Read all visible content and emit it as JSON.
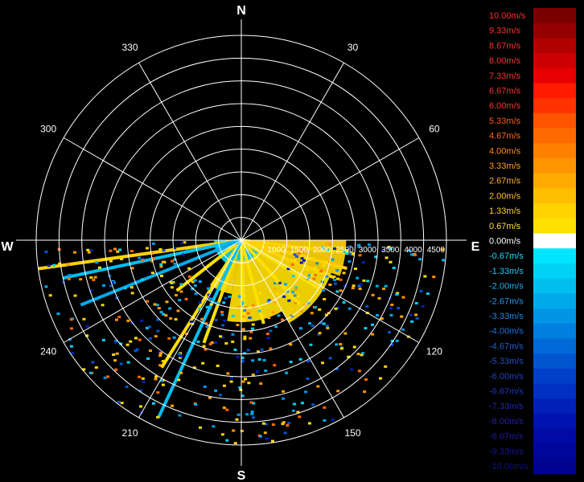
{
  "chart_data": {
    "type": "polar-radar",
    "title": "",
    "compass": {
      "north": "N",
      "east": "E",
      "south": "S",
      "west": "W"
    },
    "angle_ticks": [
      "30",
      "60",
      "120",
      "150",
      "210",
      "240",
      "300",
      "330"
    ],
    "angle_tick_degrees": [
      30,
      60,
      120,
      150,
      210,
      240,
      300,
      330
    ],
    "range_ticks": [
      "1000",
      "1500",
      "2000",
      "2500",
      "3000",
      "3500",
      "4000",
      "4500"
    ],
    "range_tick_values": [
      1000,
      1500,
      2000,
      2500,
      3000,
      3500,
      4000,
      4500
    ],
    "range_max": 4500,
    "ring_count": 9,
    "grid": true,
    "data_sector_degrees": [
      90,
      270
    ],
    "sectors": [
      {
        "from": 90,
        "to": 110,
        "range": 2300,
        "value": 1.2
      },
      {
        "from": 110,
        "to": 150,
        "range": 2100,
        "value": 1.0
      },
      {
        "from": 150,
        "to": 190,
        "range": 1800,
        "value": 0.9
      },
      {
        "from": 190,
        "to": 215,
        "range": 1200,
        "value": 0.7
      },
      {
        "from": 215,
        "to": 270,
        "range": 600,
        "value": -1.5
      },
      {
        "from": 100,
        "to": 270,
        "range": 450,
        "value": -2.0
      }
    ],
    "rays": [
      {
        "angle": 97,
        "range": 2500,
        "value": 1.3
      },
      {
        "angle": 105,
        "range": 2400,
        "value": 1.4
      },
      {
        "angle": 112,
        "range": 2200,
        "value": 1.1
      },
      {
        "angle": 122,
        "range": 2000,
        "value": 1.0
      },
      {
        "angle": 138,
        "range": 1900,
        "value": 0.9
      },
      {
        "angle": 165,
        "range": 1900,
        "value": 0.8
      },
      {
        "angle": 178,
        "range": 1800,
        "value": 0.9
      },
      {
        "angle": 200,
        "range": 2400,
        "value": 1.0
      },
      {
        "angle": 212,
        "range": 3300,
        "value": 0.7
      },
      {
        "angle": 232,
        "range": 1800,
        "value": 0.8
      },
      {
        "angle": 262,
        "range": 4500,
        "value": 1.2
      },
      {
        "angle": 258,
        "range": 4000,
        "value": -2.0
      },
      {
        "angle": 248,
        "range": 3800,
        "value": -2.5
      },
      {
        "angle": 205,
        "range": 4300,
        "value": -2.0
      }
    ],
    "colorbar": {
      "labels": [
        "10.00m/s",
        "9.33m/s",
        "8.67m/s",
        "8.00m/s",
        "7.33m/s",
        "6.67m/s",
        "6.00m/s",
        "5.33m/s",
        "4.67m/s",
        "4.00m/s",
        "3.33m/s",
        "2.67m/s",
        "2.00m/s",
        "1.33m/s",
        "0.67m/s",
        "0.00m/s",
        "-0.67m/s",
        "-1.33m/s",
        "-2.00m/s",
        "-2.67m/s",
        "-3.33m/s",
        "-4.00m/s",
        "-4.67m/s",
        "-5.33m/s",
        "-6.00m/s",
        "-6.67m/s",
        "-7.33m/s",
        "-8.00m/s",
        "-8.67m/s",
        "-9.33m/s",
        "-10.00m/s"
      ],
      "colors": [
        "#7a0000",
        "#950000",
        "#b00000",
        "#cc0000",
        "#e60000",
        "#ff1a00",
        "#ff3300",
        "#ff5500",
        "#ff6a00",
        "#ff8000",
        "#ff9500",
        "#ffaa00",
        "#ffbf00",
        "#ffd200",
        "#ffe000",
        "#ffffff",
        "#00e5ff",
        "#00d2f5",
        "#00bfef",
        "#00aaea",
        "#0095e5",
        "#0080e0",
        "#006ad8",
        "#0055d0",
        "#0040c8",
        "#0030c0",
        "#0020b8",
        "#0012b0",
        "#000aa5",
        "#00069a",
        "#000390"
      ],
      "label_colors": [
        "#ff3030",
        "#ff3030",
        "#ff3030",
        "#ff3030",
        "#ff3030",
        "#ff3030",
        "#ff3030",
        "#ff5a1a",
        "#ff6a1a",
        "#ff8a20",
        "#ffa020",
        "#ffb020",
        "#ffc020",
        "#ffd030",
        "#ffe030",
        "#ffffff",
        "#22d8ff",
        "#22c8f5",
        "#22b0ee",
        "#2299e8",
        "#2288e0",
        "#2070d8",
        "#2060d0",
        "#2050c8",
        "#2040c0",
        "#2035b8",
        "#2028b0",
        "#2020a8",
        "#20189f",
        "#151596",
        "#10108c"
      ]
    }
  }
}
